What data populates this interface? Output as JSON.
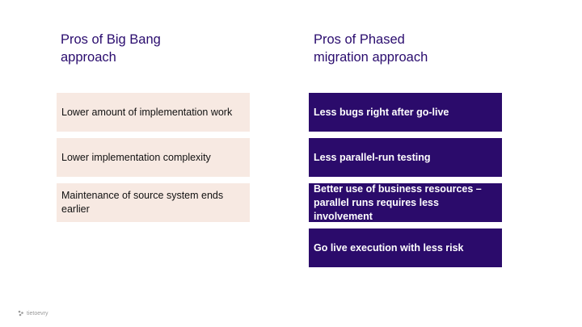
{
  "left": {
    "heading": "Pros of Big Bang\napproach",
    "items": [
      "Lower amount of implementation work",
      "Lower implementation complexity",
      "Maintenance of source system  ends earlier"
    ]
  },
  "right": {
    "heading": "Pros of Phased\nmigration approach",
    "items": [
      "Less bugs right after go-live",
      "Less parallel-run testing",
      "Better use of business resources – parallel runs requires less involvement",
      "Go live execution with less risk"
    ]
  },
  "brand": {
    "logo_text": "tietoevry",
    "logo_icon": "tietoevry-logo-icon"
  },
  "colors": {
    "heading": "#2a0c6e",
    "light_card": "#f7e9e2",
    "dark_card": "#2b0b6b"
  }
}
